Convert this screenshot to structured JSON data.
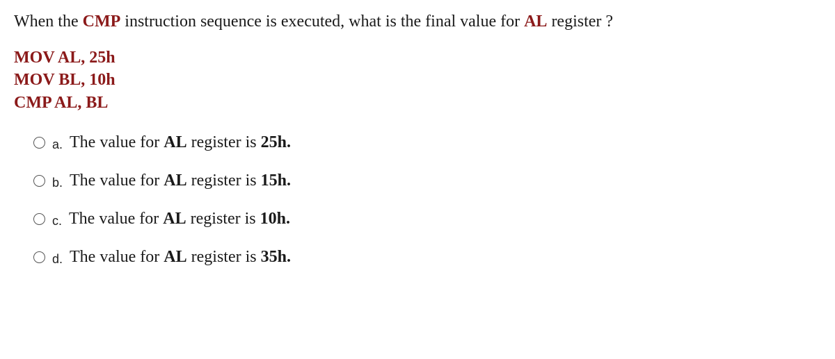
{
  "question": {
    "prefix": "When the ",
    "highlight1": "CMP",
    "mid": " instruction sequence is executed, what is the final value for  ",
    "highlight2": "AL",
    "suffix": " register ?"
  },
  "code": {
    "l1": "MOV AL, 25h",
    "l2": "MOV BL, 10h",
    "l3": "CMP AL, BL"
  },
  "options": {
    "a": {
      "label": "a.",
      "pre": "The value for ",
      "reg": "AL",
      "mid": " register is  ",
      "val": "25h",
      "post": "."
    },
    "b": {
      "label": "b.",
      "pre": "The value for ",
      "reg": "AL",
      "mid": " register is  ",
      "val": "15h",
      "post": "."
    },
    "c": {
      "label": "c.",
      "pre": "The value for ",
      "reg": "AL",
      "mid": " register is ",
      "val": "10h",
      "post": "."
    },
    "d": {
      "label": "d.",
      "pre": "The value for ",
      "reg": "AL",
      "mid": " register is  ",
      "val": "35h",
      "post": "."
    }
  },
  "colors": {
    "maroon": "#8b1a1a",
    "text": "#1a1a1a",
    "background": "#ffffff",
    "radio_border": "#555"
  },
  "typography": {
    "question_fontsize": 24,
    "code_fontsize": 24,
    "option_text_fontsize": 24,
    "option_label_fontsize": 18,
    "question_family": "Times New Roman",
    "label_family": "Arial"
  }
}
